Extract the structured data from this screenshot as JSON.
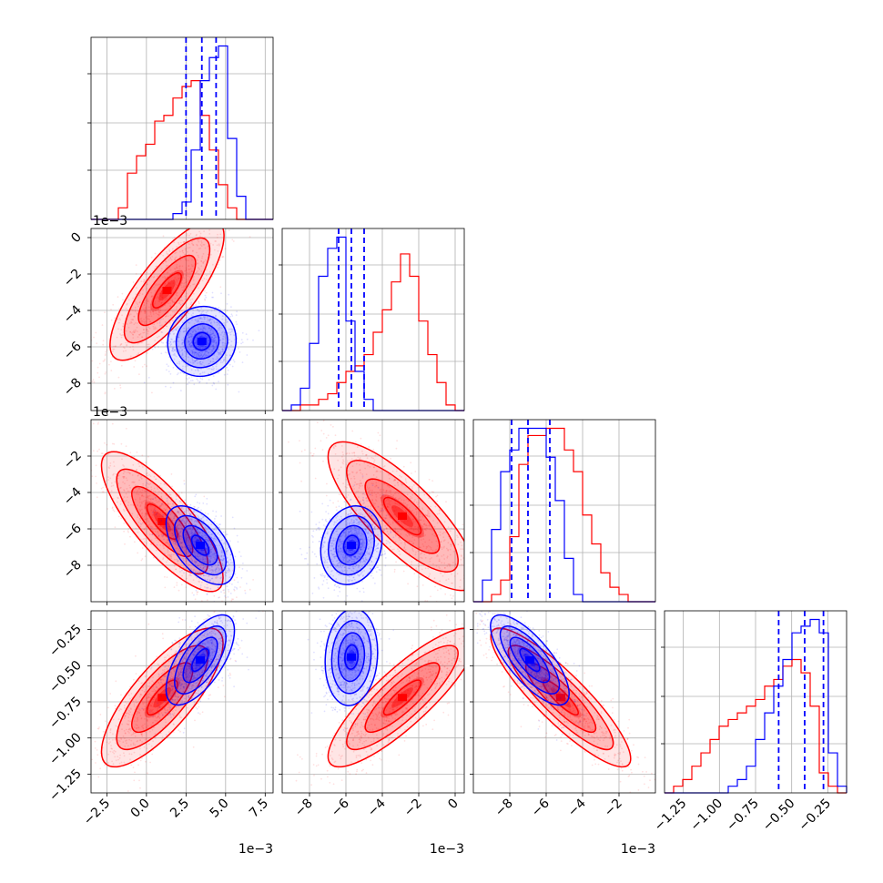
{
  "chart_data": {
    "type": "corner",
    "colors": {
      "series_a": "#ff0000",
      "series_b": "#0000ff"
    },
    "grid": true,
    "parameters": [
      {
        "range": [
          -3.5,
          8.0
        ],
        "ticks": [
          -2.5,
          0.0,
          2.5,
          5.0,
          7.5
        ],
        "tick_labels": [
          "−2.5",
          "0.0",
          "2.5",
          "5.0",
          "7.5"
        ],
        "offset_label": "1e−3"
      },
      {
        "range": [
          -9.5,
          0.5
        ],
        "ticks": [
          -8,
          -6,
          -4,
          -2,
          0
        ],
        "tick_labels": [
          "−8",
          "−6",
          "−4",
          "−2",
          "0"
        ],
        "offset_label": "1e−3"
      },
      {
        "range": [
          -10.0,
          0.0
        ],
        "ticks": [
          -8,
          -6,
          -4,
          -2
        ],
        "tick_labels": [
          "−8",
          "−6",
          "−4",
          "−2"
        ],
        "offset_label": "1e−3"
      },
      {
        "range": [
          -1.38,
          -0.12
        ],
        "ticks": [
          -1.25,
          -1.0,
          -0.75,
          -0.5,
          -0.25
        ],
        "tick_labels": [
          "−1.25",
          "−1.00",
          "−0.75",
          "−0.50",
          "−0.25"
        ],
        "offset_label": ""
      }
    ],
    "histograms": [
      {
        "bins": 20,
        "red": [
          0,
          0,
          0,
          2,
          8,
          11,
          13,
          17,
          18,
          21,
          23,
          24,
          18,
          12,
          6,
          2,
          0,
          0,
          0,
          0
        ],
        "blue": [
          0,
          0,
          0,
          0,
          0,
          0,
          0,
          0,
          0,
          1,
          3,
          12,
          24,
          28,
          30,
          14,
          4,
          0,
          0,
          0
        ],
        "quantile_lines": [
          2.5,
          3.5,
          4.4
        ]
      },
      {
        "bins": 20,
        "red": [
          0,
          0,
          1,
          1,
          2,
          3,
          5,
          7,
          8,
          10,
          14,
          18,
          23,
          28,
          24,
          16,
          10,
          5,
          1,
          0
        ],
        "blue": [
          0,
          1,
          4,
          12,
          24,
          29,
          31,
          16,
          7,
          2,
          0,
          0,
          0,
          0,
          0,
          0,
          0,
          0,
          0,
          0
        ],
        "quantile_lines": [
          -6.4,
          -5.7,
          -5.0
        ]
      },
      {
        "bins": 20,
        "red": [
          0,
          0,
          1,
          3,
          9,
          19,
          23,
          23,
          24,
          24,
          21,
          18,
          12,
          8,
          4,
          2,
          1,
          0,
          0,
          0
        ],
        "blue": [
          0,
          3,
          10,
          18,
          21,
          24,
          24,
          24,
          20,
          14,
          6,
          1,
          0,
          0,
          0,
          0,
          0,
          0,
          0,
          0
        ],
        "quantile_lines": [
          -7.9,
          -7.0,
          -5.8
        ]
      },
      {
        "bins": 20,
        "red": [
          0,
          1,
          2,
          4,
          6,
          8,
          10,
          11,
          12,
          13,
          14,
          16,
          17,
          19,
          20,
          18,
          13,
          3,
          1,
          0
        ],
        "blue": [
          0,
          0,
          0,
          0,
          0,
          0,
          0,
          1,
          2,
          4,
          8,
          12,
          16,
          20,
          24,
          25,
          26,
          24,
          6,
          1
        ],
        "quantile_lines": [
          -0.59,
          -0.41,
          -0.28
        ]
      }
    ],
    "joint": {
      "1,0": {
        "red": {
          "mean": [
            1.3,
            -2.9
          ],
          "sd": [
            1.5,
            1.6
          ],
          "rho": 0.78
        },
        "blue": {
          "mean": [
            3.5,
            -5.7
          ],
          "sd": [
            0.9,
            0.8
          ],
          "rho": 0.05
        }
      },
      "2,0": {
        "red": {
          "mean": [
            1.0,
            -5.6
          ],
          "sd": [
            1.6,
            1.6
          ],
          "rho": -0.8
        },
        "blue": {
          "mean": [
            3.4,
            -6.9
          ],
          "sd": [
            0.9,
            0.9
          ],
          "rho": -0.55
        }
      },
      "2,1": {
        "red": {
          "mean": [
            -2.9,
            -5.3
          ],
          "sd": [
            1.7,
            1.7
          ],
          "rho": -0.8
        },
        "blue": {
          "mean": [
            -5.7,
            -6.9
          ],
          "sd": [
            0.7,
            0.9
          ],
          "rho": 0.15
        }
      },
      "3,0": {
        "red": {
          "mean": [
            1.0,
            -0.72
          ],
          "sd": [
            1.6,
            0.2
          ],
          "rho": 0.78
        },
        "blue": {
          "mean": [
            3.4,
            -0.46
          ],
          "sd": [
            0.9,
            0.13
          ],
          "rho": 0.65
        }
      },
      "3,1": {
        "red": {
          "mean": [
            -2.9,
            -0.72
          ],
          "sd": [
            1.7,
            0.2
          ],
          "rho": 0.85
        },
        "blue": {
          "mean": [
            -5.7,
            -0.44
          ],
          "sd": [
            0.6,
            0.14
          ],
          "rho": 0.1
        }
      },
      "3,2": {
        "red": {
          "mean": [
            -5.2,
            -0.72
          ],
          "sd": [
            1.6,
            0.2
          ],
          "rho": -0.88
        },
        "blue": {
          "mean": [
            -6.9,
            -0.46
          ],
          "sd": [
            0.9,
            0.13
          ],
          "rho": -0.75
        }
      }
    }
  }
}
